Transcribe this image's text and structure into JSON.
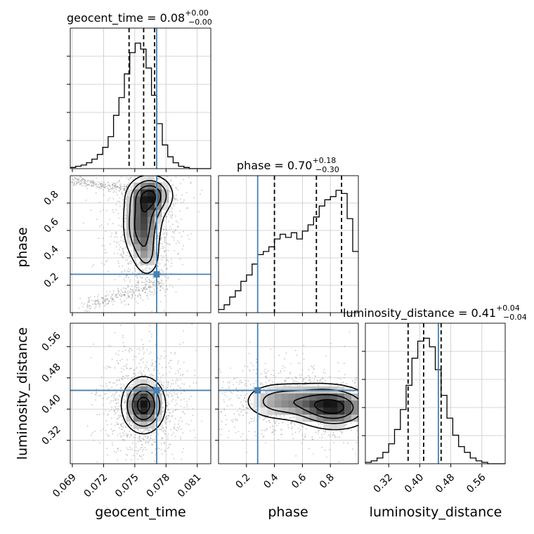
{
  "chart_data": {
    "type": "corner",
    "grid": true,
    "parameters": [
      "geocent_time",
      "phase",
      "luminosity_distance"
    ],
    "truth": {
      "geocent_time": 0.0771,
      "phase": 0.28,
      "luminosity_distance": 0.448
    },
    "titles": {
      "geocent_time": {
        "text": "geocent_time = 0.08",
        "sup": "+0.00",
        "sub": "−0.00"
      },
      "phase": {
        "text": "phase = 0.70",
        "sup": "+0.18",
        "sub": "−0.30"
      },
      "luminosity_distance": {
        "text": "luminosity_distance = 0.41",
        "sup": "+0.04",
        "sub": "−0.04"
      }
    },
    "axes": {
      "geocent_time": {
        "label": "geocent_time",
        "range": [
          0.0688,
          0.0823
        ],
        "ticks": [
          0.069,
          0.072,
          0.075,
          0.078,
          0.081
        ],
        "tick_labels": [
          "0.069",
          "0.072",
          "0.075",
          "0.078",
          "0.081"
        ]
      },
      "phase": {
        "label": "phase",
        "range": [
          0.0,
          1.0
        ],
        "ticks": [
          0.2,
          0.4,
          0.6,
          0.8
        ],
        "tick_labels": [
          "0.2",
          "0.4",
          "0.6",
          "0.8"
        ]
      },
      "luminosity_distance": {
        "label": "luminosity_distance",
        "range": [
          0.26,
          0.62
        ],
        "ticks": [
          0.32,
          0.4,
          0.48,
          0.56
        ],
        "tick_labels": [
          "0.32",
          "0.40",
          "0.48",
          "0.56"
        ]
      }
    },
    "quantiles": {
      "geocent_time": [
        0.07445,
        0.07585,
        0.0769
      ],
      "phase": [
        0.4,
        0.7,
        0.88
      ],
      "luminosity_distance": [
        0.37,
        0.41,
        0.455
      ]
    },
    "histograms": {
      "geocent_time": {
        "bin_edges": [
          0.0688,
          0.06932,
          0.06984,
          0.07036,
          0.07088,
          0.0714,
          0.07192,
          0.07244,
          0.07296,
          0.07348,
          0.074,
          0.07452,
          0.07504,
          0.07556,
          0.07608,
          0.0766,
          0.07712,
          0.07764,
          0.07816,
          0.07868,
          0.0792,
          0.07972,
          0.08024,
          0.08076,
          0.08128,
          0.0818,
          0.08232
        ],
        "counts": [
          1,
          2,
          3,
          5,
          8,
          12,
          18,
          27,
          45,
          60,
          80,
          98,
          106,
          101,
          85,
          62,
          38,
          20,
          10,
          5,
          2,
          1,
          0,
          0,
          0,
          0
        ]
      },
      "phase": {
        "bin_edges": [
          0.0,
          0.04,
          0.08,
          0.12,
          0.16,
          0.2,
          0.24,
          0.28,
          0.32,
          0.36,
          0.4,
          0.44,
          0.48,
          0.52,
          0.56,
          0.6,
          0.64,
          0.68,
          0.72,
          0.76,
          0.8,
          0.84,
          0.88,
          0.92,
          0.96,
          1.0
        ],
        "counts": [
          2,
          5,
          10,
          14,
          20,
          24,
          31,
          37,
          39,
          42,
          47,
          50,
          48,
          51,
          47,
          52,
          56,
          61,
          68,
          72,
          74,
          78,
          76,
          60,
          39
        ]
      },
      "luminosity_distance": {
        "bin_edges": [
          0.26,
          0.275,
          0.29,
          0.305,
          0.32,
          0.335,
          0.35,
          0.365,
          0.38,
          0.395,
          0.41,
          0.425,
          0.44,
          0.455,
          0.47,
          0.485,
          0.5,
          0.515,
          0.53,
          0.545,
          0.56,
          0.575,
          0.59,
          0.605,
          0.62
        ],
        "counts": [
          1,
          2,
          4,
          8,
          14,
          24,
          38,
          55,
          74,
          86,
          88,
          82,
          66,
          48,
          32,
          20,
          12,
          8,
          4,
          2,
          1,
          0,
          0,
          0
        ]
      }
    },
    "joint_2d": [
      {
        "x": "geocent_time",
        "y": "phase",
        "modes": [
          {
            "x": 0.0769,
            "y": 0.86,
            "level": 1.0
          },
          {
            "x": 0.0758,
            "y": 0.7,
            "level": 0.7
          },
          {
            "x": 0.0756,
            "y": 0.55,
            "level": 0.55
          },
          {
            "x": 0.0762,
            "y": 0.4,
            "level": 0.4
          }
        ]
      },
      {
        "x": "geocent_time",
        "y": "luminosity_distance",
        "modes": [
          {
            "x": 0.0757,
            "y": 0.41,
            "level": 1.0
          }
        ]
      },
      {
        "x": "phase",
        "y": "luminosity_distance",
        "modes": [
          {
            "x": 0.87,
            "y": 0.41,
            "level": 1.0
          },
          {
            "x": 0.62,
            "y": 0.42,
            "level": 0.6
          },
          {
            "x": 0.38,
            "y": 0.42,
            "level": 0.35
          }
        ]
      }
    ]
  }
}
